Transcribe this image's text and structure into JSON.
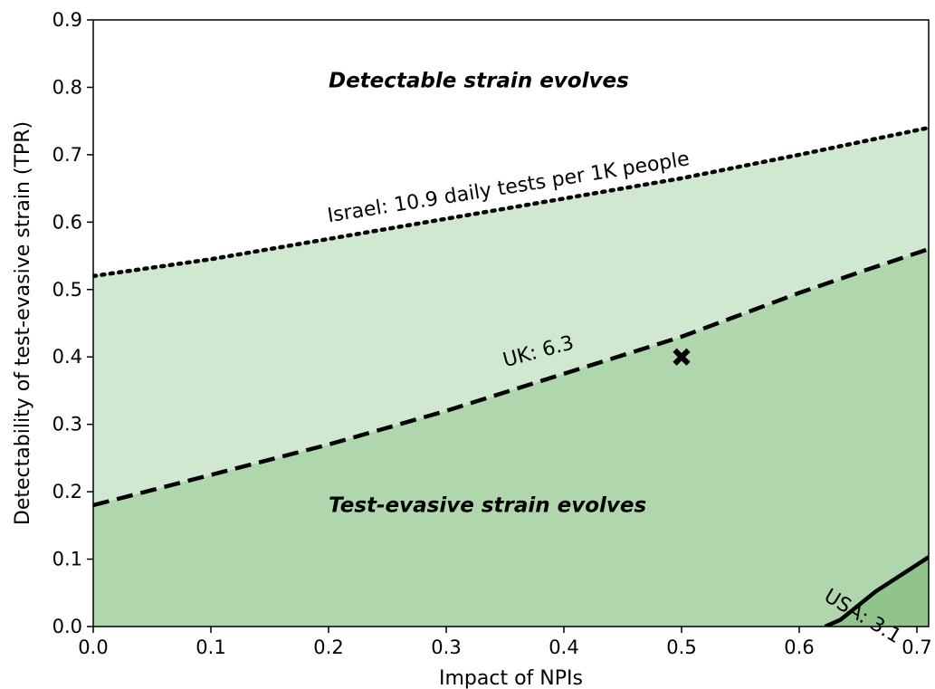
{
  "chart_data": {
    "type": "contour",
    "xlabel": "Impact of NPIs",
    "ylabel": "Detectability of test-evasive strain (TPR)",
    "xlim": [
      0.0,
      0.71
    ],
    "ylim": [
      0.0,
      0.9
    ],
    "x_ticks": [
      "0.0",
      "0.1",
      "0.2",
      "0.3",
      "0.4",
      "0.5",
      "0.6",
      "0.7"
    ],
    "y_ticks": [
      "0.0",
      "0.1",
      "0.2",
      "0.3",
      "0.4",
      "0.5",
      "0.6",
      "0.7",
      "0.8",
      "0.9"
    ],
    "grid": false,
    "region_fills": [
      "#d0e7d0",
      "#afd6ad",
      "#91c48c"
    ],
    "region_labels": [
      {
        "text": "Detectable strain evolves",
        "x": 0.2,
        "y": 0.8
      },
      {
        "text": "Test-evasive strain evolves",
        "x": 0.2,
        "y": 0.17
      }
    ],
    "series": [
      {
        "name": "Israel: 10.9 daily tests per 1K people",
        "style": "dotted",
        "points": [
          [
            0.0,
            0.52
          ],
          [
            0.1,
            0.545
          ],
          [
            0.2,
            0.575
          ],
          [
            0.3,
            0.605
          ],
          [
            0.4,
            0.635
          ],
          [
            0.5,
            0.665
          ],
          [
            0.6,
            0.7
          ],
          [
            0.71,
            0.74
          ]
        ],
        "label_at": [
          0.2,
          0.6
        ],
        "label_angle": 9
      },
      {
        "name": "UK: 6.3",
        "style": "dashed",
        "points": [
          [
            0.0,
            0.18
          ],
          [
            0.1,
            0.225
          ],
          [
            0.2,
            0.27
          ],
          [
            0.3,
            0.32
          ],
          [
            0.4,
            0.375
          ],
          [
            0.5,
            0.43
          ],
          [
            0.6,
            0.495
          ],
          [
            0.65,
            0.525
          ],
          [
            0.71,
            0.56
          ]
        ],
        "label_at": [
          0.35,
          0.385
        ],
        "label_angle": 15
      },
      {
        "name": "USA: 3.1",
        "style": "solid",
        "points": [
          [
            0.622,
            0.0
          ],
          [
            0.635,
            0.01
          ],
          [
            0.665,
            0.052
          ],
          [
            0.71,
            0.103
          ]
        ],
        "label_at": [
          0.62,
          0.04
        ],
        "label_angle": -31
      }
    ],
    "markers": [
      {
        "x": 0.5,
        "y": 0.4,
        "symbol": "x"
      }
    ]
  }
}
